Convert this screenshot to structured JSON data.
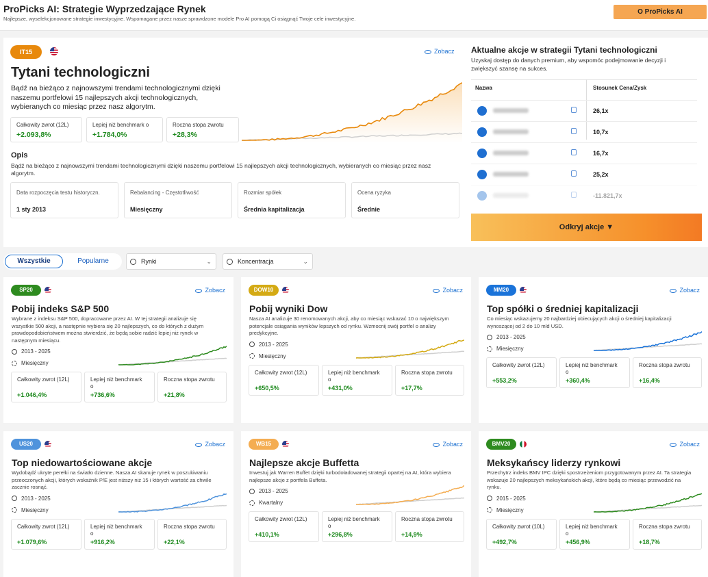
{
  "header": {
    "title": "ProPicks AI: Strategie Wyprzedzające Rynek",
    "subtitle": "Najlepsze, wyselekcjonowane strategie inwestycyjne. Wspomagane przez nasze sprawdzone modele Pro AI pomogą Ci osiągnąć Twoje cele inwestycyjne.",
    "button": "O ProPicks AI"
  },
  "featured": {
    "badge": "IT15",
    "link": "Zobacz",
    "title": "Tytani technologiczni",
    "description": "Bądź na bieżąco z najnowszymi trendami technologicznymi dzięki naszemu portfelowi 15 najlepszych akcji technologicznych, wybieranych co miesiąc przez nasz algorytm.",
    "stats": [
      {
        "label": "Całkowity zwrot (12L)",
        "value": "+2.093,8%"
      },
      {
        "label": "Lepiej niż benchmark o",
        "value": "+1.784,0%"
      },
      {
        "label": "Roczna stopa zwrotu",
        "value": "+28,3%"
      }
    ],
    "opis_heading": "Opis",
    "opis_text": "Bądź na bieżąco z najnowszymi trendami technologicznymi dzięki naszemu portfelowi 15 najlepszych akcji technologicznych, wybieranych co miesiąc przez nasz algorytm.",
    "details": [
      {
        "label": "Data rozpoczęcia testu historyczn.",
        "value": "1 sty 2013"
      },
      {
        "label": "Rebalancing - Częstotliwość",
        "value": "Miesięczny"
      },
      {
        "label": "Rozmiar spółek",
        "value": "Średnia kapitalizacja"
      },
      {
        "label": "Ocena ryzyka",
        "value": "Średnie"
      }
    ]
  },
  "premium": {
    "title": "Aktualne akcje w strategii Tytani technologiczni",
    "subtitle": "Uzyskaj dostęp do danych premium, aby wspomóc podejmowanie decyzji i zwiększyć szansę na sukces.",
    "columns": [
      "Nazwa",
      "Stosunek Cena/Zysk"
    ],
    "rows": [
      "26,1x",
      "10,7x",
      "16,7x",
      "25,2x",
      "-11.821,7x"
    ],
    "button": "Odkryj akcje"
  },
  "filters": {
    "tabs": [
      "Wszystkie",
      "Popularne"
    ],
    "dropdowns": [
      "Rynki",
      "Koncentracja"
    ]
  },
  "cards": [
    {
      "badge": "SP20",
      "color": "#2e8b1f",
      "flag": "us",
      "link": "Zobacz",
      "title": "Pobij indeks S&P 500",
      "description": "Wybrane z indeksu S&P 500, dopracowane przez AI. W tej strategii analizuje się wszystkie 500 akcji, a następnie wybiera się 20 najlepszych, co do których z dużym prawdopodobieństwem można stwierdzić, że będą sobie radzić lepiej niż rynek w następnym miesiącu.",
      "period": "2013 - 2025",
      "frequency": "Miesięczny",
      "stats": [
        {
          "label": "Całkowity zwrot (12L)",
          "value": "+1.046,4%"
        },
        {
          "label": "Lepiej niż benchmark o",
          "value": "+736,6%"
        },
        {
          "label": "Roczna stopa zwrotu",
          "value": "+21,8%"
        }
      ]
    },
    {
      "badge": "DOW10",
      "color": "#d4aa14",
      "flag": "us",
      "link": "Zobacz",
      "title": "Pobij wyniki Dow",
      "description": "Nasza AI analizuje 30 renomowanych akcji, aby co miesiąc wskazać 10 o największym potencjale osiągania wyników lepszych od rynku. Wzmocnij swój portfel o analizy predykcyjne.",
      "period": "2013 - 2025",
      "frequency": "Miesięczny",
      "stats": [
        {
          "label": "Całkowity zwrot (12L)",
          "value": "+650,5%"
        },
        {
          "label": "Lepiej niż benchmark o",
          "value": "+431,0%"
        },
        {
          "label": "Roczna stopa zwrotu",
          "value": "+17,7%"
        }
      ]
    },
    {
      "badge": "MM20",
      "color": "#1a73d9",
      "flag": "us",
      "link": "Zobacz",
      "title": "Top spółki o średniej kapitalizacji",
      "description": "Co miesiąc wskazujemy 20 najbardziej obiecujących akcji o średniej kapitalizacji wynoszącej od 2 do 10 mld USD.",
      "period": "2013 - 2025",
      "frequency": "Miesięczny",
      "stats": [
        {
          "label": "Całkowity zwrot (12L)",
          "value": "+553,2%"
        },
        {
          "label": "Lepiej niż benchmark o",
          "value": "+360,4%"
        },
        {
          "label": "Roczna stopa zwrotu",
          "value": "+16,4%"
        }
      ]
    },
    {
      "badge": "US20",
      "color": "#4f93dc",
      "flag": "us",
      "link": "Zobacz",
      "title": "Top niedowartościowane akcje",
      "description": "Wydobądź ukryte perełki na światło dzienne. Nasza AI skanuje rynek w poszukiwaniu przeoczonych akcji, których wskaźnik P/E jest niższy niż 15 i których wartość za chwile zacznie rosnąć.",
      "period": "2013 - 2025",
      "frequency": "Miesięczny",
      "stats": [
        {
          "label": "Całkowity zwrot (12L)",
          "value": "+1.079,6%"
        },
        {
          "label": "Lepiej niż benchmark o",
          "value": "+916,2%"
        },
        {
          "label": "Roczna stopa zwrotu",
          "value": "+22,1%"
        }
      ]
    },
    {
      "badge": "WB15",
      "color": "#f4ad52",
      "flag": "us",
      "link": "Zobacz",
      "title": "Najlepsze akcje Buffetta",
      "description": "Inwestuj jak Warren Buffet dzięki turbodoładowanej strategii opartej na AI, która wybiera najlepsze akcje z portfela Buffeta.",
      "period": "2013 - 2025",
      "frequency": "Kwartalny",
      "stats": [
        {
          "label": "Całkowity zwrot (12L)",
          "value": "+410,1%"
        },
        {
          "label": "Lepiej niż benchmark o",
          "value": "+296,8%"
        },
        {
          "label": "Roczna stopa zwrotu",
          "value": "+14,9%"
        }
      ]
    },
    {
      "badge": "BMV20",
      "color": "#2e8b1f",
      "flag": "mx",
      "link": "Zobacz",
      "title": "Meksykańscy liderzy rynkowi",
      "description": "Przechytrz indeks BMV IPC dzięki spostrzeżeniom przygotowanym przez AI. Ta strategia wskazuje 20 najlepszych meksykańskich akcji, które będą co miesiąc przewodzić na rynku.",
      "period": "2015 - 2025",
      "frequency": "Miesięczny",
      "stats": [
        {
          "label": "Całkowity zwrot (10L)",
          "value": "+492,7%"
        },
        {
          "label": "Lepiej niż benchmark o",
          "value": "+456,9%"
        },
        {
          "label": "Roczna stopa zwrotu",
          "value": "+18,7%"
        }
      ]
    }
  ]
}
